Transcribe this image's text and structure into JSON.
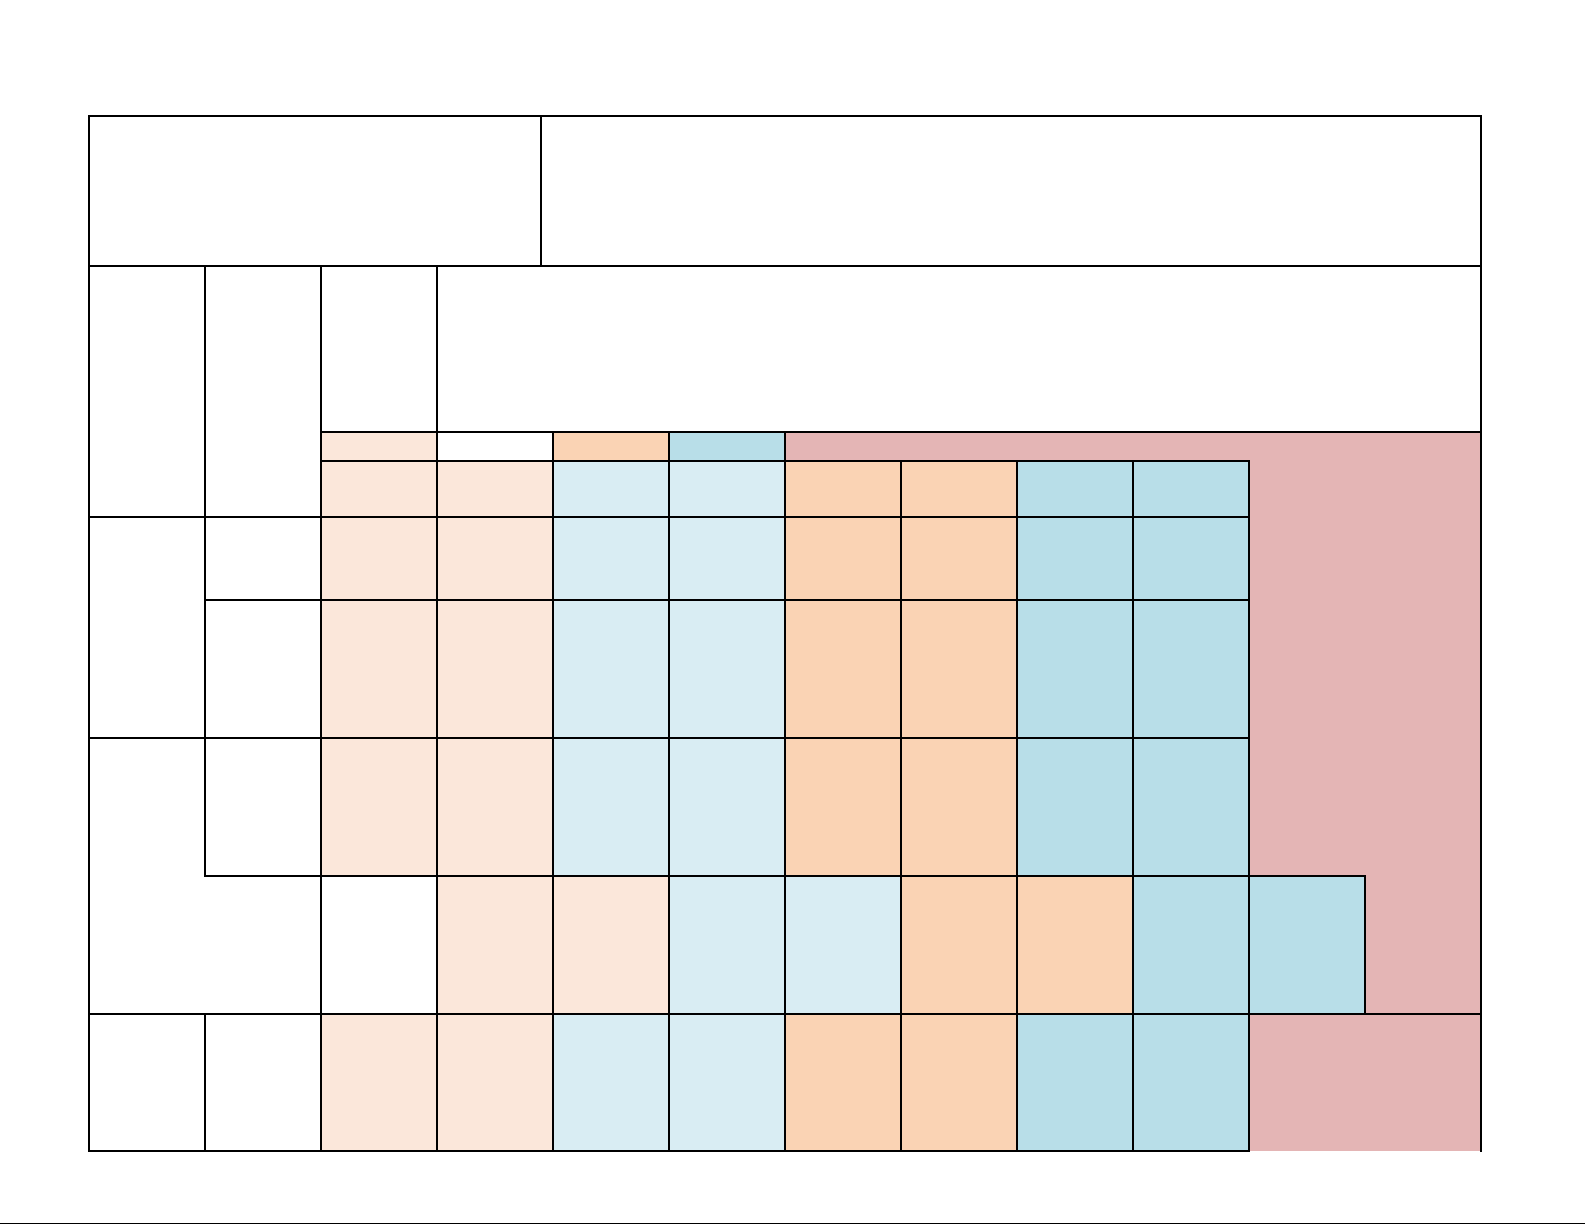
{
  "document": {
    "type": "blank colour-coded grid form",
    "text_content": []
  },
  "colors": {
    "light_peach": "#FBE7DA",
    "light_blue": "#D9EDF3",
    "peach": "#FAD3B4",
    "blue": "#B8DEE8",
    "rose": "#E4B5B5",
    "white": "#FFFFFF",
    "line": "#000000"
  }
}
